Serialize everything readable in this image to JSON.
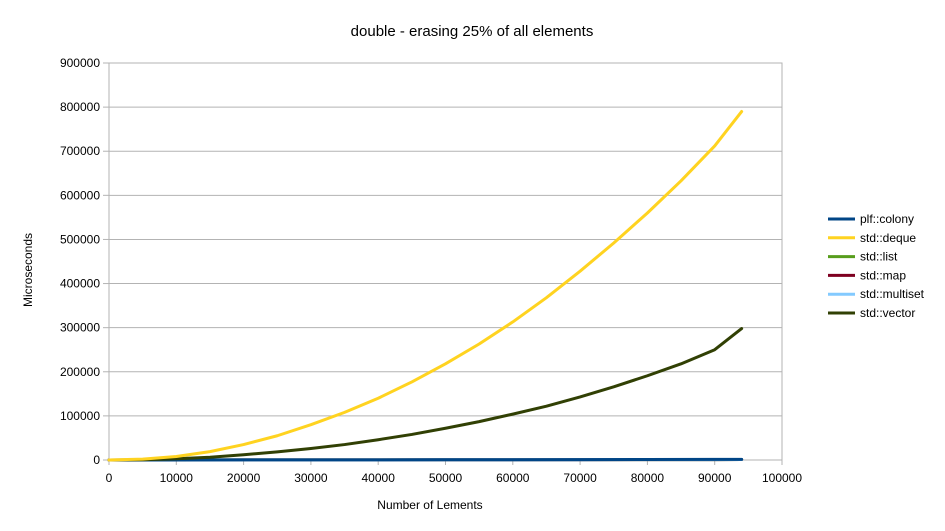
{
  "chart_data": {
    "type": "line",
    "title": "double - erasing 25% of all elements",
    "xlabel": "Number of Lements",
    "ylabel": "Microseconds",
    "xlim": [
      0,
      100000
    ],
    "ylim": [
      0,
      900000
    ],
    "xticks": [
      0,
      10000,
      20000,
      30000,
      40000,
      50000,
      60000,
      70000,
      80000,
      90000,
      100000
    ],
    "yticks": [
      0,
      100000,
      200000,
      300000,
      400000,
      500000,
      600000,
      700000,
      800000,
      900000
    ],
    "grid": true,
    "legend": "right",
    "series": [
      {
        "name": "plf::colony",
        "color": "#004586",
        "x": [
          0,
          10000,
          20000,
          30000,
          40000,
          50000,
          60000,
          70000,
          80000,
          90000,
          94000
        ],
        "y": [
          0,
          100,
          200,
          300,
          400,
          600,
          700,
          900,
          1100,
          1400,
          1500
        ]
      },
      {
        "name": "std::deque",
        "color": "#ffd320",
        "x": [
          0,
          5000,
          10000,
          15000,
          20000,
          25000,
          30000,
          35000,
          40000,
          45000,
          50000,
          55000,
          60000,
          65000,
          70000,
          75000,
          80000,
          85000,
          90000,
          94000
        ],
        "y": [
          0,
          2000,
          8000,
          19000,
          35000,
          55000,
          80000,
          108000,
          140000,
          177000,
          218000,
          263000,
          313000,
          368000,
          428000,
          492000,
          560000,
          633000,
          712000,
          790000
        ]
      },
      {
        "name": "std::list",
        "color": "#579d1c",
        "x": [
          0,
          10000,
          20000,
          30000,
          40000,
          50000,
          60000,
          70000,
          80000,
          90000,
          94000
        ],
        "y": [
          0,
          100,
          200,
          300,
          400,
          500,
          600,
          700,
          800,
          900,
          1000
        ]
      },
      {
        "name": "std::map",
        "color": "#7e0021",
        "x": [
          0,
          10000,
          20000,
          30000,
          40000,
          50000,
          60000,
          70000,
          80000,
          90000,
          94000
        ],
        "y": [
          0,
          100,
          200,
          300,
          400,
          500,
          600,
          700,
          800,
          900,
          1000
        ]
      },
      {
        "name": "std::multiset",
        "color": "#83caff",
        "x": [
          0,
          10000,
          20000,
          30000,
          40000,
          50000,
          60000,
          70000,
          80000,
          90000,
          94000
        ],
        "y": [
          0,
          100,
          200,
          300,
          400,
          500,
          600,
          700,
          800,
          900,
          1000
        ]
      },
      {
        "name": "std::vector",
        "color": "#314004",
        "x": [
          0,
          5000,
          10000,
          15000,
          20000,
          25000,
          30000,
          35000,
          40000,
          45000,
          50000,
          55000,
          60000,
          65000,
          70000,
          75000,
          80000,
          85000,
          90000,
          94000
        ],
        "y": [
          0,
          700,
          2800,
          6300,
          12000,
          18500,
          26000,
          35000,
          46000,
          58000,
          72000,
          87000,
          104000,
          122000,
          143000,
          166000,
          191000,
          218000,
          250000,
          298000
        ]
      }
    ]
  }
}
